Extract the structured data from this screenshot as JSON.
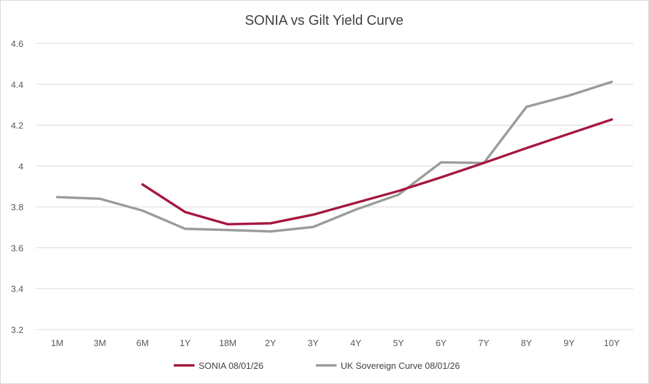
{
  "chart_data": {
    "type": "line",
    "title": "SONIA vs Gilt Yield Curve",
    "xlabel": "",
    "ylabel": "",
    "categories": [
      "1M",
      "3M",
      "6M",
      "1Y",
      "18M",
      "2Y",
      "3Y",
      "4Y",
      "5Y",
      "6Y",
      "7Y",
      "8Y",
      "9Y",
      "10Y"
    ],
    "ylim": [
      3.2,
      4.6
    ],
    "yticks": [
      3.2,
      3.4,
      3.6,
      3.8,
      4,
      4.2,
      4.4,
      4.6
    ],
    "ytick_labels": [
      "3.2",
      "3.4",
      "3.6",
      "3.8",
      "4",
      "4.2",
      "4.4",
      "4.6"
    ],
    "grid": true,
    "legend_position": "bottom",
    "series": [
      {
        "name": "SONIA 08/01/26",
        "color": "#a5173e",
        "values": [
          null,
          null,
          3.91,
          3.775,
          3.715,
          3.72,
          3.762,
          3.82,
          3.878,
          3.945,
          4.015,
          4.088,
          4.158,
          4.228
        ]
      },
      {
        "name": "UK Sovereign Curve 08/01/26",
        "color": "#9b9b9b",
        "values": [
          3.848,
          3.84,
          3.782,
          3.693,
          3.687,
          3.68,
          3.702,
          3.787,
          3.86,
          4.018,
          4.015,
          4.29,
          4.345,
          4.412
        ]
      }
    ]
  }
}
